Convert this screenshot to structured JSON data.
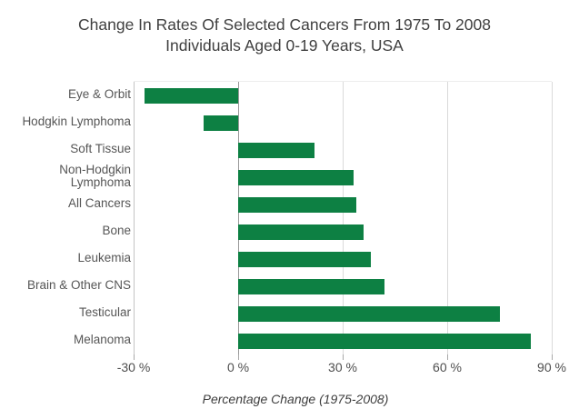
{
  "title": {
    "line1": "Change In Rates Of Selected Cancers From 1975 To 2008",
    "line2": "Individuals Aged 0-19 Years, USA"
  },
  "chart_data": {
    "type": "bar",
    "orientation": "horizontal",
    "title": "Change In Rates Of Selected Cancers From 1975 To 2008, Individuals Aged 0-19 Years, USA",
    "categories": [
      "Eye & Orbit",
      "Hodgkin Lymphoma",
      "Soft Tissue",
      "Non-Hodgkin Lymphoma",
      "All Cancers",
      "Bone",
      "Leukemia",
      "Brain & Other CNS",
      "Testicular",
      "Melanoma"
    ],
    "category_lines": [
      [
        "Eye & Orbit"
      ],
      [
        "Hodgkin Lymphoma"
      ],
      [
        "Soft Tissue"
      ],
      [
        "Non-Hodgkin",
        "Lymphoma"
      ],
      [
        "All Cancers"
      ],
      [
        "Bone"
      ],
      [
        "Leukemia"
      ],
      [
        "Brain & Other CNS"
      ],
      [
        "Testicular"
      ],
      [
        "Melanoma"
      ]
    ],
    "values": [
      -27,
      -10,
      22,
      33,
      34,
      36,
      38,
      42,
      75,
      84
    ],
    "xlabel": "Percentage Change (1975-2008)",
    "ylabel": "",
    "xlim": [
      -30,
      90
    ],
    "xticks": [
      {
        "value": -30,
        "label": "-30 %"
      },
      {
        "value": 0,
        "label": "0 %"
      },
      {
        "value": 30,
        "label": "30 %"
      },
      {
        "value": 60,
        "label": "60 %"
      },
      {
        "value": 90,
        "label": "90 %"
      }
    ],
    "grid": true,
    "legend": false,
    "bar_color": "#0d8043"
  },
  "colors": {
    "bar": "#0d8043",
    "title_text": "#3f3f3f",
    "category_label": "#565656",
    "tick_label": "#4f4f4f",
    "axis_label": "#3e3e3e",
    "gridline": "#dadada",
    "edge_line": "#c4c4c4",
    "zero_line": "#999999",
    "background": "#ffffff"
  }
}
